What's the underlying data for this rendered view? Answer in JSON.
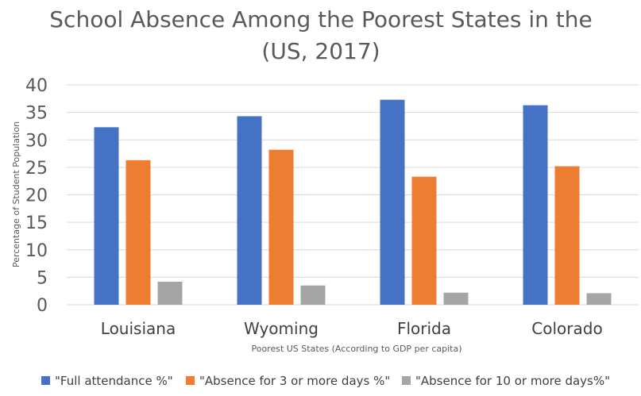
{
  "chart_data": {
    "type": "bar",
    "title_lines": [
      "School Absence Among the Poorest States in the",
      "(US, 2017)"
    ],
    "xlabel": "Poorest US States (According to GDP per capita)",
    "ylabel": "Percentage of Student Population",
    "ylim": [
      0,
      40
    ],
    "yticks": [
      0,
      5,
      10,
      15,
      20,
      25,
      30,
      35,
      40
    ],
    "grid": true,
    "legend_position": "bottom",
    "categories": [
      "Louisiana",
      "Wyoming",
      "Florida",
      "Colorado"
    ],
    "series": [
      {
        "name": "\"Full attendance %\"",
        "color": "#4472c4",
        "values": [
          32.3,
          34.3,
          37.3,
          36.3
        ]
      },
      {
        "name": "\"Absence for 3 or more days %\"",
        "color": "#ed7d31",
        "values": [
          26.3,
          28.2,
          23.3,
          25.2
        ]
      },
      {
        "name": "\"Absence for 10 or more days%\"",
        "color": "#a5a5a5",
        "values": [
          4.2,
          3.5,
          2.2,
          2.1
        ]
      }
    ]
  }
}
